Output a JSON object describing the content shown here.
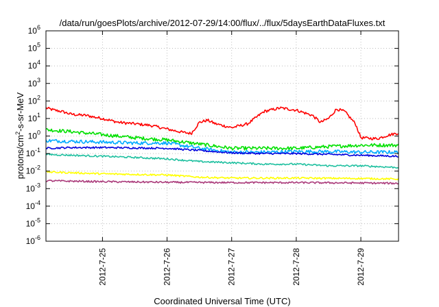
{
  "chart_data": {
    "type": "line",
    "title": "/data/run/goesPlots/archive/2012-07-29/14:00/flux/../flux/5daysEarthDataFluxes.txt",
    "xlabel": "Coordinated Universal Time (UTC)",
    "ylabel_base": "protons/cm",
    "ylabel_sup": "2",
    "ylabel_tail": "-s-sr-MeV",
    "yscale": "log",
    "ylim": [
      1e-06,
      1000000
    ],
    "xlim": [
      "2012-07-24T03:00",
      "2012-07-29T14:00"
    ],
    "grid": true,
    "legend": "none",
    "y_ticks": [
      {
        "base": "10",
        "exp": "-6",
        "value": 1e-06
      },
      {
        "base": "10",
        "exp": "-5",
        "value": 1e-05
      },
      {
        "base": "10",
        "exp": "-4",
        "value": 0.0001
      },
      {
        "base": "10",
        "exp": "-3",
        "value": 0.001
      },
      {
        "base": "10",
        "exp": "-2",
        "value": 0.01
      },
      {
        "base": "10",
        "exp": "-1",
        "value": 0.1
      },
      {
        "base": "10",
        "exp": "0",
        "value": 1
      },
      {
        "base": "10",
        "exp": "1",
        "value": 10
      },
      {
        "base": "10",
        "exp": "2",
        "value": 100
      },
      {
        "base": "10",
        "exp": "3",
        "value": 1000
      },
      {
        "base": "10",
        "exp": "4",
        "value": 10000
      },
      {
        "base": "10",
        "exp": "5",
        "value": 100000
      },
      {
        "base": "10",
        "exp": "6",
        "value": 1000000
      }
    ],
    "x_ticks": [
      {
        "label": "2012-7-25",
        "value": "2012-07-25T00:00"
      },
      {
        "label": "2012-7-26",
        "value": "2012-07-26T00:00"
      },
      {
        "label": "2012-7-27",
        "value": "2012-07-27T00:00"
      },
      {
        "label": "2012-7-28",
        "value": "2012-07-28T00:00"
      },
      {
        "label": "2012-7-29",
        "value": "2012-07-29T00:00"
      }
    ],
    "series": [
      {
        "color": "#ff0000",
        "noise": 0.08,
        "x": [
          "2012-07-24T03:00",
          "2012-07-24T06:00",
          "2012-07-24T09:00",
          "2012-07-24T12:00",
          "2012-07-24T15:00",
          "2012-07-24T18:00",
          "2012-07-24T21:00",
          "2012-07-25T00:00",
          "2012-07-25T06:00",
          "2012-07-25T12:00",
          "2012-07-25T18:00",
          "2012-07-26T00:00",
          "2012-07-26T06:00",
          "2012-07-26T09:00",
          "2012-07-26T12:00",
          "2012-07-26T15:00",
          "2012-07-26T18:00",
          "2012-07-27T00:00",
          "2012-07-27T06:00",
          "2012-07-27T12:00",
          "2012-07-27T18:00",
          "2012-07-28T00:00",
          "2012-07-28T06:00",
          "2012-07-28T09:00",
          "2012-07-28T12:00",
          "2012-07-28T15:00",
          "2012-07-28T18:00",
          "2012-07-28T22:00",
          "2012-07-29T00:00",
          "2012-07-29T06:00",
          "2012-07-29T10:00",
          "2012-07-29T14:00"
        ],
        "y": [
          40,
          30,
          25,
          18,
          16,
          15,
          12,
          10,
          6,
          5,
          4,
          2.5,
          1.6,
          1.4,
          6,
          8,
          5,
          3,
          5,
          25,
          40,
          30,
          15,
          6,
          10,
          35,
          25,
          5,
          0.8,
          0.7,
          1.1,
          1.5
        ]
      },
      {
        "color": "#00e000",
        "noise": 0.1,
        "x": [
          "2012-07-24T03:00",
          "2012-07-24T12:00",
          "2012-07-25T00:00",
          "2012-07-25T12:00",
          "2012-07-26T00:00",
          "2012-07-26T12:00",
          "2012-07-27T00:00",
          "2012-07-27T12:00",
          "2012-07-28T00:00",
          "2012-07-28T12:00",
          "2012-07-29T00:00",
          "2012-07-29T14:00"
        ],
        "y": [
          2.3,
          1.8,
          1.2,
          0.8,
          0.6,
          0.35,
          0.2,
          0.2,
          0.2,
          0.25,
          0.3,
          0.3
        ]
      },
      {
        "color": "#00aaff",
        "noise": 0.1,
        "x": [
          "2012-07-24T03:00",
          "2012-07-24T12:00",
          "2012-07-25T00:00",
          "2012-07-25T12:00",
          "2012-07-26T00:00",
          "2012-07-26T12:00",
          "2012-07-27T00:00",
          "2012-07-27T12:00",
          "2012-07-28T00:00",
          "2012-07-28T12:00",
          "2012-07-29T00:00",
          "2012-07-29T14:00"
        ],
        "y": [
          0.55,
          0.5,
          0.45,
          0.4,
          0.4,
          0.2,
          0.12,
          0.12,
          0.13,
          0.13,
          0.12,
          0.12
        ]
      },
      {
        "color": "#0000dd",
        "noise": 0.05,
        "x": [
          "2012-07-24T03:00",
          "2012-07-24T12:00",
          "2012-07-25T00:00",
          "2012-07-25T12:00",
          "2012-07-26T00:00",
          "2012-07-26T12:00",
          "2012-07-27T00:00",
          "2012-07-27T12:00",
          "2012-07-28T00:00",
          "2012-07-28T12:00",
          "2012-07-29T00:00",
          "2012-07-29T14:00"
        ],
        "y": [
          0.2,
          0.22,
          0.22,
          0.21,
          0.2,
          0.15,
          0.11,
          0.1,
          0.1,
          0.09,
          0.08,
          0.07
        ]
      },
      {
        "color": "#20c0a0",
        "noise": 0.05,
        "x": [
          "2012-07-24T03:00",
          "2012-07-25T00:00",
          "2012-07-25T12:00",
          "2012-07-26T00:00",
          "2012-07-26T12:00",
          "2012-07-27T00:00",
          "2012-07-27T12:00",
          "2012-07-28T00:00",
          "2012-07-28T12:00",
          "2012-07-29T00:00",
          "2012-07-29T14:00"
        ],
        "y": [
          0.09,
          0.07,
          0.06,
          0.05,
          0.035,
          0.03,
          0.025,
          0.025,
          0.02,
          0.02,
          0.016
        ]
      },
      {
        "color": "#ffff00",
        "noise": 0.05,
        "x": [
          "2012-07-24T03:00",
          "2012-07-25T00:00",
          "2012-07-26T00:00",
          "2012-07-26T12:00",
          "2012-07-27T00:00",
          "2012-07-28T00:00",
          "2012-07-29T00:00",
          "2012-07-29T14:00"
        ],
        "y": [
          0.009,
          0.007,
          0.006,
          0.0045,
          0.004,
          0.004,
          0.0038,
          0.0035
        ]
      },
      {
        "color": "#aa3a7a",
        "noise": 0.05,
        "x": [
          "2012-07-24T03:00",
          "2012-07-25T00:00",
          "2012-07-26T00:00",
          "2012-07-27T00:00",
          "2012-07-28T00:00",
          "2012-07-29T00:00",
          "2012-07-29T14:00"
        ],
        "y": [
          0.0028,
          0.0025,
          0.0023,
          0.0022,
          0.0022,
          0.0021,
          0.002
        ]
      }
    ]
  }
}
